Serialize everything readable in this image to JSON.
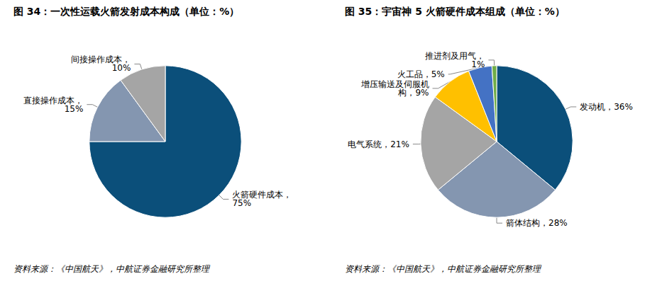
{
  "chart_data": [
    {
      "type": "pie",
      "title": "图 34：一次性运载火箭发射成本构成（单位：%）",
      "source": "资料来源：《中国航天》，中航证券金融研究所整理",
      "categories": [
        "火箭硬件成本",
        "直接操作成本",
        "间接操作成本"
      ],
      "values": [
        75,
        15,
        10
      ],
      "value_labels": [
        "火箭硬件成本，75%",
        "直接操作成本，15%",
        "间接操作成本，10%"
      ],
      "colors": [
        "#0b4f7a",
        "#8496b0",
        "#a5a5a5"
      ],
      "data_labels": true
    },
    {
      "type": "pie",
      "title": "图 35：宇宙神 5 火箭硬件成本组成（单位：%）",
      "source": "资料来源：《中国航天》，中航证券金融研究所整理",
      "categories": [
        "发动机",
        "箭体结构",
        "电气系统",
        "增压输送及伺服机构",
        "火工品",
        "推进剂及用气"
      ],
      "values": [
        36,
        28,
        21,
        9,
        5,
        1
      ],
      "value_labels": [
        "发动机，36%",
        "箭体结构，28%",
        "电气系统，21%",
        "增压输送及伺服机构，9%",
        "火工品，5%",
        "推进剂及用气，1%"
      ],
      "colors": [
        "#0b4f7a",
        "#8496b0",
        "#a5a5a5",
        "#ffc000",
        "#4472c4",
        "#70ad47"
      ],
      "data_labels": true
    }
  ]
}
